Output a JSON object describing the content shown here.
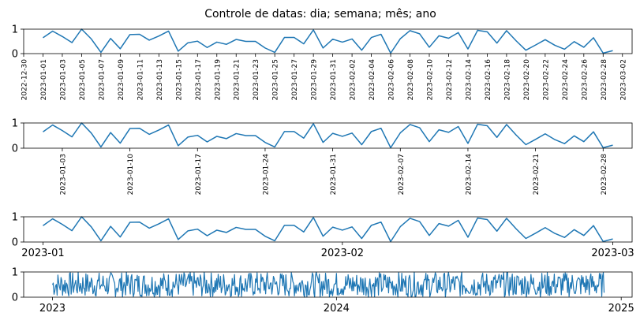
{
  "figure": {
    "title": "Controle de datas: dia; semana; mês; ano"
  },
  "chart_data": [
    {
      "type": "line",
      "granularity": "day",
      "x_start": "2023-01-01",
      "x_end": "2023-03-01",
      "xlim": [
        "2022-12-30",
        "2023-03-03"
      ],
      "ylim": [
        0,
        1
      ],
      "yticks": [
        0,
        1
      ],
      "xtick_labels": [
        "2022-12-30",
        "2023-01-01",
        "2023-01-03",
        "2023-01-05",
        "2023-01-07",
        "2023-01-09",
        "2023-01-11",
        "2023-01-13",
        "2023-01-15",
        "2023-01-17",
        "2023-01-19",
        "2023-01-21",
        "2023-01-23",
        "2023-01-25",
        "2023-01-27",
        "2023-01-29",
        "2023-01-31",
        "2023-02-02",
        "2023-02-04",
        "2023-02-06",
        "2023-02-08",
        "2023-02-10",
        "2023-02-12",
        "2023-02-14",
        "2023-02-16",
        "2023-02-18",
        "2023-02-20",
        "2023-02-22",
        "2023-02-24",
        "2023-02-26",
        "2023-02-28",
        "2023-03-02"
      ],
      "color": "#1f77b4"
    },
    {
      "type": "line",
      "granularity": "week",
      "x_start": "2023-01-01",
      "x_end": "2023-03-01",
      "xlim": [
        "2022-12-30",
        "2023-03-03"
      ],
      "ylim": [
        0,
        1
      ],
      "yticks": [
        0,
        1
      ],
      "xtick_labels": [
        "2023-01-03",
        "2023-01-10",
        "2023-01-17",
        "2023-01-24",
        "2023-01-31",
        "2023-02-07",
        "2023-02-14",
        "2023-02-21",
        "2023-02-28"
      ],
      "color": "#1f77b4"
    },
    {
      "type": "line",
      "granularity": "month",
      "x_start": "2023-01-01",
      "x_end": "2023-03-01",
      "xlim": [
        "2022-12-30",
        "2023-03-03"
      ],
      "ylim": [
        0,
        1
      ],
      "yticks": [
        0,
        1
      ],
      "xtick_labels": [
        "2023-01",
        "2023-02",
        "2023-03"
      ],
      "color": "#1f77b4"
    },
    {
      "type": "line",
      "granularity": "year",
      "x_start": "2023-01-01",
      "x_end": "2024-12-10",
      "xlim": [
        "2022-11-25",
        "2025-01-15"
      ],
      "ylim": [
        0,
        1
      ],
      "yticks": [
        0,
        1
      ],
      "xtick_labels": [
        "2023",
        "2024",
        "2025"
      ],
      "color": "#1f77b4"
    }
  ],
  "daily_values": [
    0.65,
    0.92,
    0.7,
    0.45,
    1.0,
    0.6,
    0.05,
    0.62,
    0.2,
    0.78,
    0.79,
    0.55,
    0.72,
    0.92,
    0.1,
    0.44,
    0.51,
    0.25,
    0.47,
    0.38,
    0.58,
    0.5,
    0.5,
    0.23,
    0.05,
    0.66,
    0.66,
    0.4,
    0.97,
    0.23,
    0.59,
    0.47,
    0.6,
    0.14,
    0.66,
    0.79,
    0.02,
    0.61,
    0.94,
    0.81,
    0.26,
    0.73,
    0.63,
    0.86,
    0.19,
    0.95,
    0.89,
    0.43,
    0.94,
    0.52,
    0.14,
    0.35,
    0.57,
    0.34,
    0.18,
    0.49,
    0.26,
    0.65,
    0.02,
    0.12
  ]
}
